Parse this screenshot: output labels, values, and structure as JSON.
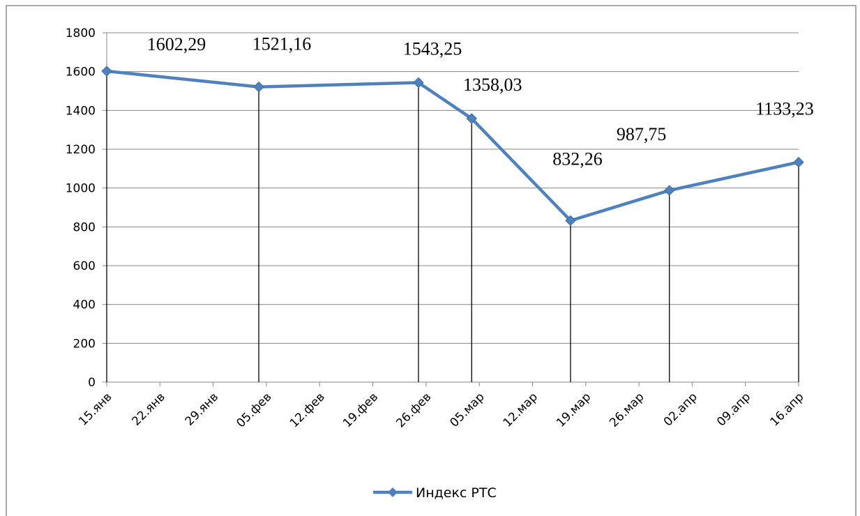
{
  "chart_data": {
    "type": "line",
    "x": [
      "15.янв",
      "04.фев",
      "25.фев",
      "04.мар",
      "17.мар",
      "30.мар",
      "16.апр"
    ],
    "xticks": [
      "15.янв",
      "22.янв",
      "29.янв",
      "05.фев",
      "12.фев",
      "19.фев",
      "26.фев",
      "05.мар",
      "12.мар",
      "19.мар",
      "26.мар",
      "02.апр",
      "09.апр",
      "16.апр"
    ],
    "series": [
      {
        "name": "Индекс РТС",
        "color": "#4f81bd",
        "values": [
          1602.29,
          1521.16,
          1543.25,
          1358.03,
          832.26,
          987.75,
          1133.23
        ],
        "value_labels": [
          "1602,29",
          "1521,16",
          "1543,25",
          "1358,03",
          "832,26",
          "987,75",
          "1133,23"
        ]
      }
    ],
    "ylim": [
      0,
      1800
    ],
    "yticks": [
      0,
      200,
      400,
      600,
      800,
      1000,
      1200,
      1400,
      1600,
      1800
    ],
    "grid": true,
    "legend": "bottom",
    "drop_lines": true
  }
}
